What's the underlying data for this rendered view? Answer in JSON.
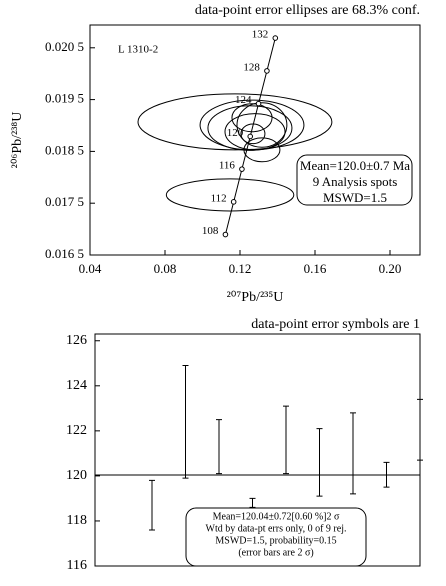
{
  "chart_data": [
    {
      "type": "concordia",
      "title": "data-point error ellipses are 68.3% conf.",
      "x_label": "²⁰⁷Pb/²³⁵U",
      "y_label": "²⁰⁶Pb/²³⁸U",
      "xlim": [
        0.04,
        0.216
      ],
      "xticks": [
        0.04,
        0.08,
        0.12,
        0.16,
        {
          "value": 0.2,
          "label": "0.20"
        }
      ],
      "ylim": [
        0.0165,
        0.02094
      ],
      "yticks": [
        {
          "value": 0.0165,
          "label": "0.016 5"
        },
        {
          "value": 0.0175,
          "label": "0.017 5"
        },
        {
          "value": 0.0185,
          "label": "0.018 5"
        },
        {
          "value": 0.0195,
          "label": "0.019 5"
        },
        {
          "value": 0.0205,
          "label": "0.020 5"
        }
      ],
      "concordia": {
        "ages": [
          108,
          112,
          116,
          120,
          124,
          128,
          132
        ],
        "x": [
          0.112226,
          0.116617,
          0.121025,
          0.12545,
          0.129892,
          0.134352,
          0.138828
        ],
        "y": [
          0.016895,
          0.017526,
          0.018157,
          0.018789,
          0.019422,
          0.020054,
          0.020688
        ]
      },
      "ellipses": {
        "x": [
          0.1173,
          0.1147,
          0.1264,
          0.1253,
          0.128,
          0.1317,
          0.1269,
          0.1317,
          0.1264
        ],
        "y": [
          0.01907,
          0.01766,
          0.01901,
          0.01895,
          0.01888,
          0.01901,
          0.01884,
          0.01853,
          0.01915
        ],
        "x_err": [
          0.0517,
          0.034,
          0.0277,
          0.0224,
          0.016,
          0.0133,
          0.0064,
          0.0096,
          0.0107
        ],
        "y_err": [
          0.00054,
          0.00031,
          0.00048,
          0.00043,
          0.00035,
          0.00043,
          0.00019,
          0.00023,
          0.00027
        ]
      },
      "annotations": [
        "L 1310-2"
      ],
      "summary": [
        "Mean=120.0±0.7 Ma",
        "9 Analysis spots",
        "MSWD=1.5"
      ]
    },
    {
      "type": "errorbar",
      "title": "data-point error symbols are 1",
      "ylim": [
        116,
        126.3
      ],
      "yticks": [
        116,
        118,
        120,
        122,
        124,
        126
      ],
      "values": [
        118.7,
        122.4,
        121.3,
        118.8,
        121.6,
        120.6,
        121.0,
        120.05,
        122.05
      ],
      "errors": [
        1.1,
        2.5,
        1.2,
        0.2,
        1.5,
        1.5,
        1.8,
        0.55,
        1.35
      ],
      "mean": 120.04,
      "summary": [
        "Mean=120.04±0.72[0.60 %]2 σ",
        "Wtd by data-pt errs only, 0 of 9 rej.",
        "MSWD=1.5, probability=0.15",
        "(error bars are 2 σ)"
      ]
    }
  ]
}
